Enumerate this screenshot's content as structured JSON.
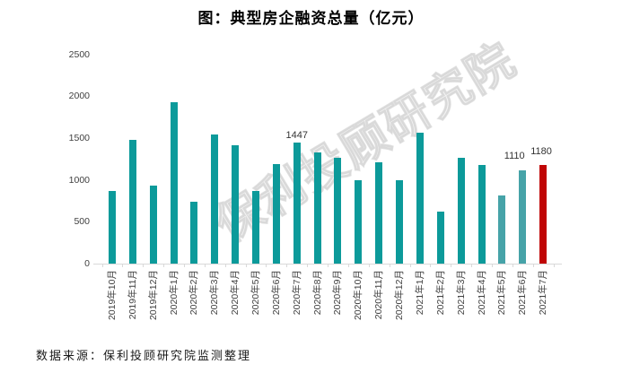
{
  "chart_data": {
    "type": "bar",
    "title": "图：典型房企融资总量（亿元）",
    "categories": [
      "2019年10月",
      "2019年11月",
      "2019年12月",
      "2020年1月",
      "2020年2月",
      "2020年3月",
      "2020年4月",
      "2020年5月",
      "2020年6月",
      "2020年7月",
      "2020年8月",
      "2020年9月",
      "2020年10月",
      "2020年11月",
      "2020年12月",
      "2021年1月",
      "2021年2月",
      "2021年3月",
      "2021年4月",
      "2021年5月",
      "2021年6月",
      "2021年7月"
    ],
    "values": [
      870,
      1480,
      930,
      1930,
      740,
      1540,
      1410,
      870,
      1190,
      1447,
      1330,
      1270,
      1000,
      1210,
      1000,
      1560,
      625,
      1260,
      1175,
      810,
      1110,
      1180
    ],
    "value_labels": [
      {
        "index": 9,
        "text": "1447"
      },
      {
        "index": 20,
        "text": "1110"
      },
      {
        "index": 21,
        "text": "1180"
      }
    ],
    "yticks": [
      0,
      500,
      1000,
      1500,
      2000,
      2500
    ],
    "ylim": [
      0,
      2500
    ],
    "xlabel": "",
    "ylabel": "",
    "grid": false,
    "legend": false,
    "highlight_index": 21,
    "light_indices": [
      19,
      20
    ]
  },
  "colors": {
    "bar_teal": "#0C9A9A",
    "bar_teal_light": "#46A3A8",
    "bar_red": "#C00505",
    "axis": "#D9D9D9",
    "tick_text": "#404040",
    "title_text": "#000000"
  },
  "watermark": {
    "text": "保利投顾研究院"
  },
  "footer": {
    "source_text": "数据来源：保利投顾研究院监测整理"
  }
}
